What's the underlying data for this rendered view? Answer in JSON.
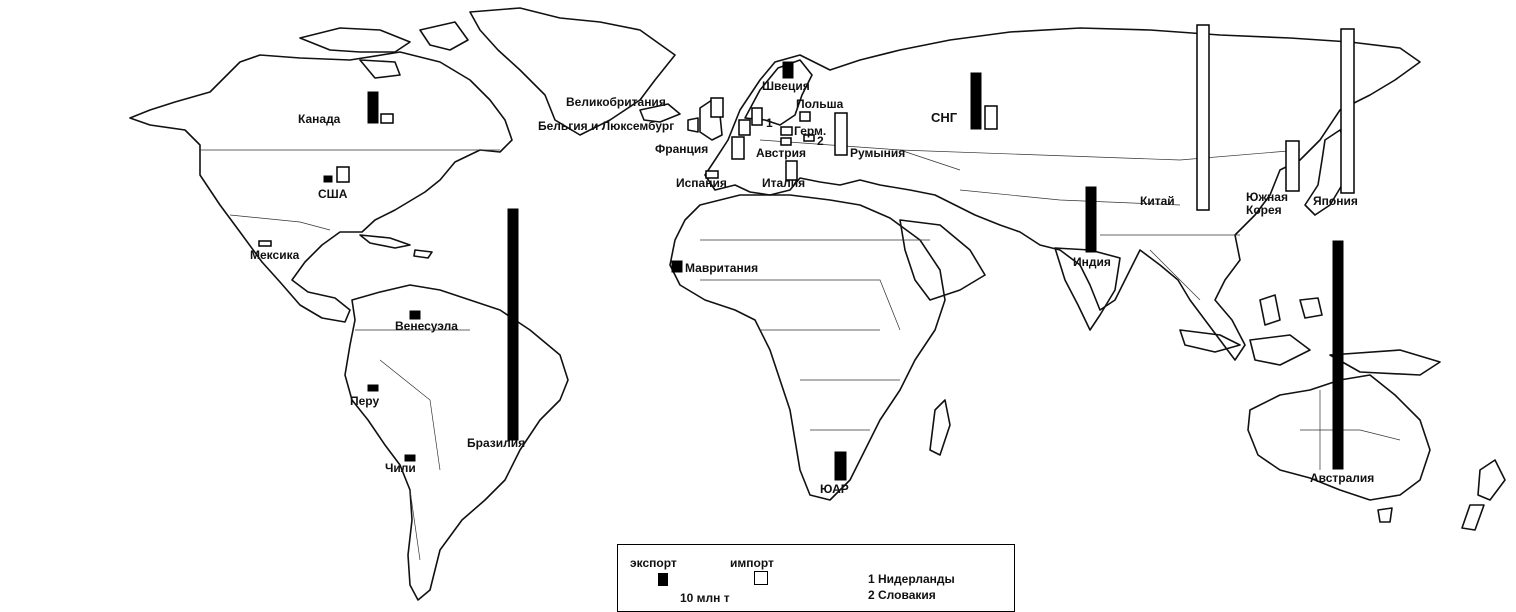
{
  "map": {
    "export_color": "#000000",
    "import_color": "#ffffff",
    "labels": {
      "canada": "Канада",
      "usa": "США",
      "mexico": "Мексика",
      "venezuela": "Венесуэла",
      "peru": "Перу",
      "chile": "Чили",
      "brazil": "Бразилия",
      "mauritania": "Мавритания",
      "south_africa": "ЮАР",
      "sweden": "Швеция",
      "uk": "Великобритания",
      "belgium_lux": "Бельгия и Люксембург",
      "france": "Франция",
      "spain": "Испания",
      "italy": "Италия",
      "poland": "Польша",
      "austria": "Австрия",
      "romania": "Румыния",
      "germany_abbr": "Герм.",
      "cis": "СНГ",
      "india": "Индия",
      "china": "Китай",
      "south_korea_1": "Южная",
      "south_korea_2": "Корея",
      "japan": "Япония",
      "australia": "Австралия",
      "marker_1": "1",
      "marker_2": "2"
    }
  },
  "legend": {
    "export_label": "экспорт",
    "import_label": "импорт",
    "scale_label": "10 млн т",
    "note_1": "1  Нидерланды",
    "note_2": "2  Словакия"
  }
}
